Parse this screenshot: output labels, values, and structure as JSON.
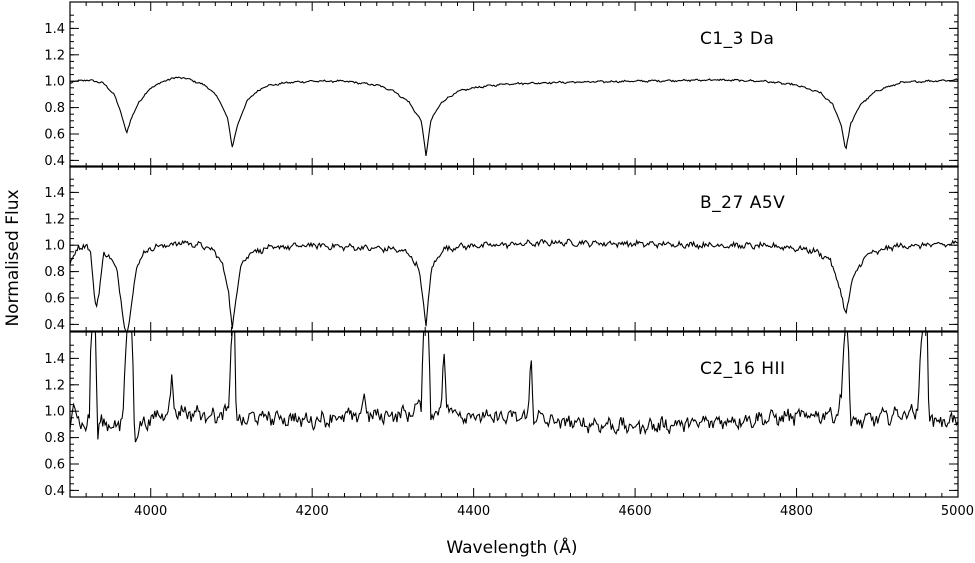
{
  "figure": {
    "ylabel": "Normalised Flux",
    "xlabel": "Wavelength (Å)"
  },
  "chart_data": {
    "type": "line",
    "xlim": [
      3900,
      5000
    ],
    "x_ticks": [
      4000,
      4200,
      4400,
      4600,
      4800,
      5000
    ],
    "x_tick_labels": [
      "4000",
      "4200",
      "4400",
      "4600",
      "4800",
      "5000"
    ],
    "xlabel": "Wavelength (Å)",
    "ylabel": "Normalised Flux",
    "grid": false,
    "legend": "none",
    "line_color": "#000000",
    "panels": [
      {
        "label": "C1_3 Da",
        "ylim": [
          0.35,
          1.6
        ],
        "y_ticks": [
          0.4,
          0.6,
          0.8,
          1.0,
          1.2,
          1.4
        ],
        "y_tick_labels": [
          "0.4",
          "0.6",
          "0.8",
          "1.0",
          "1.2",
          "1.4"
        ],
        "continuum": 1.0,
        "noise": 0.006,
        "x": [
          3900,
          3920,
          3940,
          3955,
          3965,
          3970,
          3975,
          3985,
          4000,
          4020,
          4035,
          4050,
          4070,
          4085,
          4095,
          4101,
          4107,
          4120,
          4140,
          4170,
          4200,
          4240,
          4280,
          4300,
          4320,
          4335,
          4341,
          4347,
          4360,
          4380,
          4400,
          4440,
          4500,
          4600,
          4700,
          4760,
          4800,
          4830,
          4845,
          4855,
          4861,
          4867,
          4880,
          4900,
          4930,
          4960,
          5000
        ],
        "y": [
          0.99,
          1.01,
          0.99,
          0.9,
          0.72,
          0.61,
          0.7,
          0.84,
          0.95,
          1.01,
          1.03,
          1.01,
          0.96,
          0.86,
          0.72,
          0.5,
          0.66,
          0.86,
          0.96,
          0.99,
          1.0,
          1.0,
          0.97,
          0.93,
          0.84,
          0.7,
          0.44,
          0.7,
          0.84,
          0.92,
          0.95,
          0.98,
          0.99,
          1.0,
          1.01,
          1.0,
          0.97,
          0.91,
          0.82,
          0.68,
          0.47,
          0.68,
          0.83,
          0.93,
          0.99,
          1.0,
          1.01
        ]
      },
      {
        "label": "B_27 A5V",
        "ylim": [
          0.35,
          1.6
        ],
        "y_ticks": [
          0.4,
          0.6,
          0.8,
          1.0,
          1.2,
          1.4
        ],
        "y_tick_labels": [
          "0.4",
          "0.6",
          "0.8",
          "1.0",
          "1.2",
          "1.4"
        ],
        "continuum": 1.0,
        "noise": 0.018,
        "x": [
          3900,
          3910,
          3920,
          3926,
          3930,
          3933,
          3936,
          3942,
          3950,
          3958,
          3964,
          3968,
          3970,
          3972,
          3976,
          3982,
          3990,
          4000,
          4020,
          4040,
          4060,
          4075,
          4088,
          4096,
          4101,
          4106,
          4112,
          4125,
          4150,
          4200,
          4260,
          4300,
          4320,
          4332,
          4341,
          4348,
          4360,
          4380,
          4420,
          4500,
          4600,
          4700,
          4780,
          4820,
          4840,
          4852,
          4861,
          4868,
          4885,
          4920,
          5000
        ],
        "y": [
          0.86,
          0.98,
          1.01,
          0.92,
          0.62,
          0.55,
          0.65,
          0.93,
          0.92,
          0.8,
          0.55,
          0.38,
          0.34,
          0.36,
          0.55,
          0.82,
          0.93,
          0.98,
          1.0,
          1.02,
          1.0,
          0.97,
          0.88,
          0.66,
          0.37,
          0.62,
          0.86,
          0.95,
          0.98,
          1.0,
          0.98,
          0.97,
          0.94,
          0.82,
          0.41,
          0.82,
          0.96,
          0.99,
          1.0,
          1.02,
          1.01,
          1.0,
          0.99,
          0.96,
          0.9,
          0.72,
          0.46,
          0.72,
          0.92,
          0.99,
          1.01
        ]
      },
      {
        "label": "C2_16 HII",
        "ylim": [
          0.35,
          1.6
        ],
        "y_ticks": [
          0.4,
          0.6,
          0.8,
          1.0,
          1.2,
          1.4
        ],
        "y_tick_labels": [
          "0.4",
          "0.6",
          "0.8",
          "1.0",
          "1.2",
          "1.4"
        ],
        "continuum": 0.93,
        "noise": 0.045,
        "x": [
          3900,
          3904,
          3908,
          3914,
          3920,
          3924,
          3926,
          3929,
          3932,
          3934,
          3937,
          3945,
          3955,
          3962,
          3966,
          3970,
          3974,
          3977,
          3980,
          3990,
          4010,
          4024,
          4026,
          4030,
          4060,
          4090,
          4097,
          4100,
          4104,
          4106,
          4110,
          4130,
          4200,
          4260,
          4265,
          4270,
          4320,
          4335,
          4338,
          4340,
          4344,
          4347,
          4350,
          4360,
          4363,
          4366,
          4380,
          4420,
          4468,
          4471,
          4474,
          4500,
          4600,
          4700,
          4800,
          4850,
          4856,
          4859,
          4864,
          4867,
          4875,
          4900,
          4950,
          4955,
          4957,
          4962,
          4964,
          4970,
          4990,
          5000
        ],
        "y": [
          0.85,
          1.08,
          0.98,
          0.92,
          0.85,
          0.95,
          1.6,
          1.6,
          1.6,
          0.78,
          0.9,
          0.92,
          0.88,
          0.88,
          1.05,
          1.6,
          1.6,
          1.6,
          0.82,
          0.9,
          0.97,
          1.02,
          1.27,
          1.0,
          0.98,
          0.96,
          1.02,
          1.6,
          1.6,
          0.93,
          0.92,
          0.96,
          0.93,
          0.97,
          1.12,
          0.96,
          0.98,
          1.05,
          1.6,
          1.6,
          1.6,
          0.95,
          0.98,
          1.05,
          1.48,
          1.05,
          0.98,
          0.95,
          0.96,
          1.49,
          0.96,
          0.92,
          0.88,
          0.92,
          0.96,
          0.98,
          1.1,
          1.6,
          1.6,
          0.88,
          0.92,
          0.95,
          1.0,
          1.6,
          1.6,
          1.6,
          1.0,
          0.92,
          0.93,
          0.93
        ]
      }
    ]
  }
}
